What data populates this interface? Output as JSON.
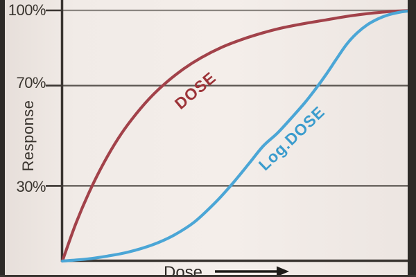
{
  "figure": {
    "y_axis_title": "Response",
    "x_axis_title": "Dose",
    "ticks": [
      {
        "label": "100%",
        "percent": 100
      },
      {
        "label": "70%",
        "percent": 70
      },
      {
        "label": "30%",
        "percent": 30
      }
    ],
    "curve_labels": {
      "linear": "DOSE",
      "log": "Log.DOSE"
    },
    "colors": {
      "dose_curve": "#a2424a",
      "dose_label": "#9c3338",
      "log_dose_curve": "#4ba6d6",
      "log_dose_label": "#3b9ccd",
      "axis": "#3a3531",
      "background": "#f1ebe7"
    }
  },
  "chart_data": {
    "type": "line",
    "title": "",
    "xlabel": "Dose",
    "ylabel": "Response",
    "xlim": [
      0,
      100
    ],
    "ylim": [
      0,
      100
    ],
    "y_tick_labels": [
      "30%",
      "70%",
      "100%"
    ],
    "y_gridlines_percent": [
      30,
      70,
      100
    ],
    "grid": "horizontal-only",
    "legend": "inline-rotated-curve-labels",
    "description": "Dose-response curves converging at 100%: response vs dose is hyperbolic (DOSE), response vs log dose is sigmoid (Log.DOSE); both start at origin and saturate at 100%.",
    "series": [
      {
        "name": "DOSE",
        "shape": "hyperbolic-saturating",
        "color": "#a2424a",
        "points": [
          [
            0,
            0
          ],
          [
            4,
            15.4
          ],
          [
            8,
            28.3
          ],
          [
            12,
            39.3
          ],
          [
            16,
            48.7
          ],
          [
            20,
            56.5
          ],
          [
            25,
            64.7
          ],
          [
            30,
            71.3
          ],
          [
            35,
            76.7
          ],
          [
            40,
            81.1
          ],
          [
            46,
            85.3
          ],
          [
            52,
            88.5
          ],
          [
            58,
            91.1
          ],
          [
            64,
            93.2
          ],
          [
            70,
            94.8
          ],
          [
            76,
            96.2
          ],
          [
            82,
            97.6
          ],
          [
            88,
            98.7
          ],
          [
            94,
            99.5
          ],
          [
            100,
            99.9
          ]
        ]
      },
      {
        "name": "Log.DOSE",
        "shape": "sigmoid",
        "color": "#4ba6d6",
        "points": [
          [
            0,
            0
          ],
          [
            7,
            0.8
          ],
          [
            13,
            2.0
          ],
          [
            19,
            3.6
          ],
          [
            26,
            6.5
          ],
          [
            32,
            10.2
          ],
          [
            38,
            15.5
          ],
          [
            44,
            23.2
          ],
          [
            49,
            30.8
          ],
          [
            54,
            39.2
          ],
          [
            58,
            46.0
          ],
          [
            62,
            51.0
          ],
          [
            66,
            57.0
          ],
          [
            70,
            63.3
          ],
          [
            73,
            68.6
          ],
          [
            76,
            74.3
          ],
          [
            79,
            80.5
          ],
          [
            82,
            86.5
          ],
          [
            85,
            91.0
          ],
          [
            88,
            94.3
          ],
          [
            91,
            96.6
          ],
          [
            94,
            98.2
          ],
          [
            97,
            99.2
          ],
          [
            100,
            99.8
          ]
        ]
      }
    ]
  }
}
